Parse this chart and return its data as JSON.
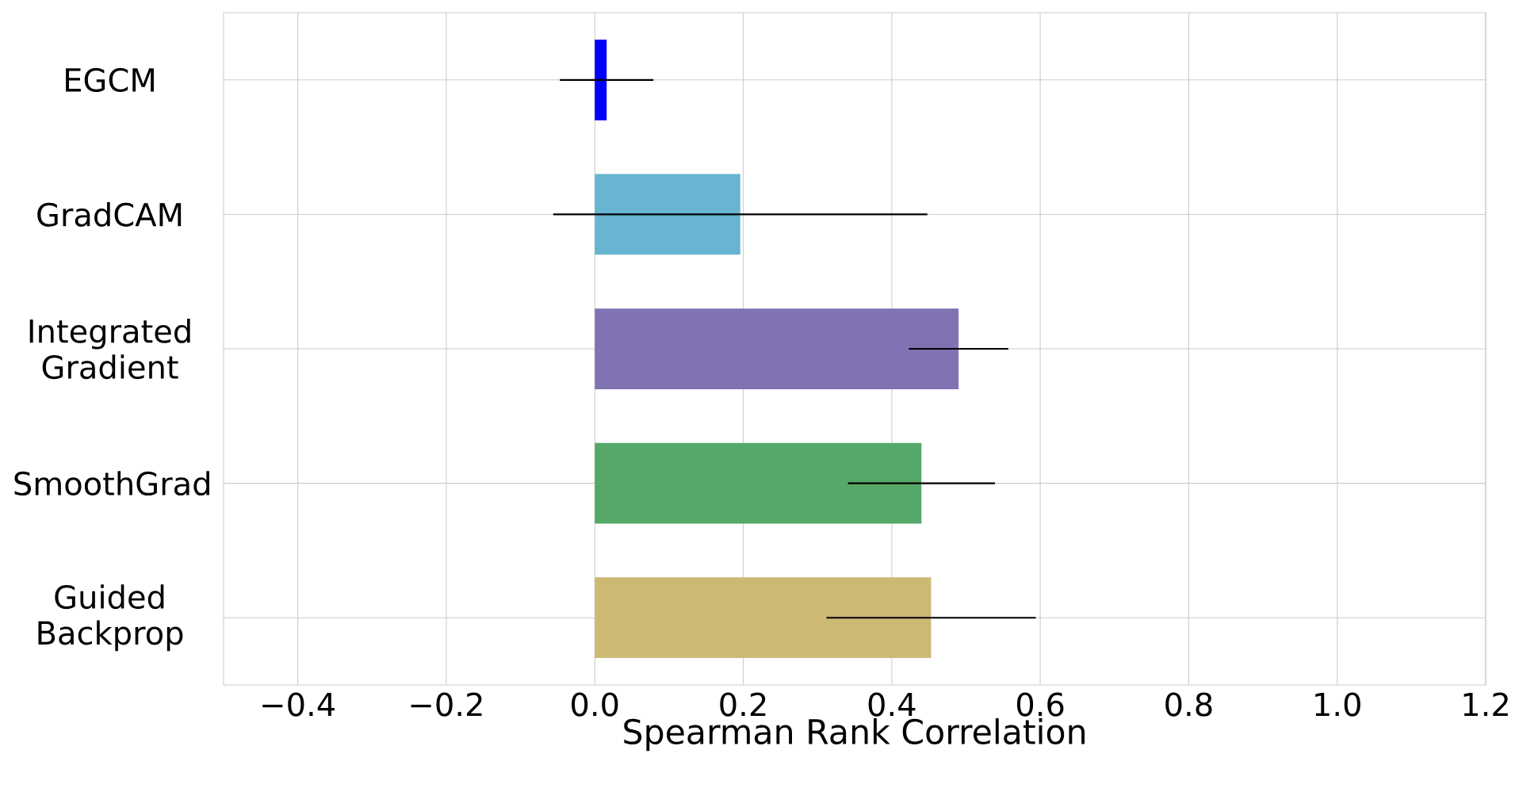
{
  "chart_data": {
    "type": "bar",
    "orientation": "horizontal",
    "xlabel": "Spearman Rank Correlation",
    "categories": [
      "EGCM",
      "GradCAM",
      "Integrated Gradient",
      "SmoothGrad",
      "Guided Backprop"
    ],
    "values": [
      0.016,
      0.196,
      0.49,
      0.44,
      0.453
    ],
    "errors": [
      0.063,
      0.252,
      0.067,
      0.099,
      0.141
    ],
    "colors": [
      "#0000ff",
      "#67b5d0",
      "#8172b3",
      "#55a868",
      "#ccb974"
    ],
    "xlim": [
      -0.5,
      1.2
    ],
    "xticks": [
      {
        "value": -0.4,
        "label": "−0.4"
      },
      {
        "value": -0.2,
        "label": "−0.2"
      },
      {
        "value": 0,
        "label": "0.0"
      },
      0.2,
      0.4,
      0.6,
      0.8,
      {
        "value": 1,
        "label": "1.0"
      },
      1.2
    ],
    "grid": true
  }
}
